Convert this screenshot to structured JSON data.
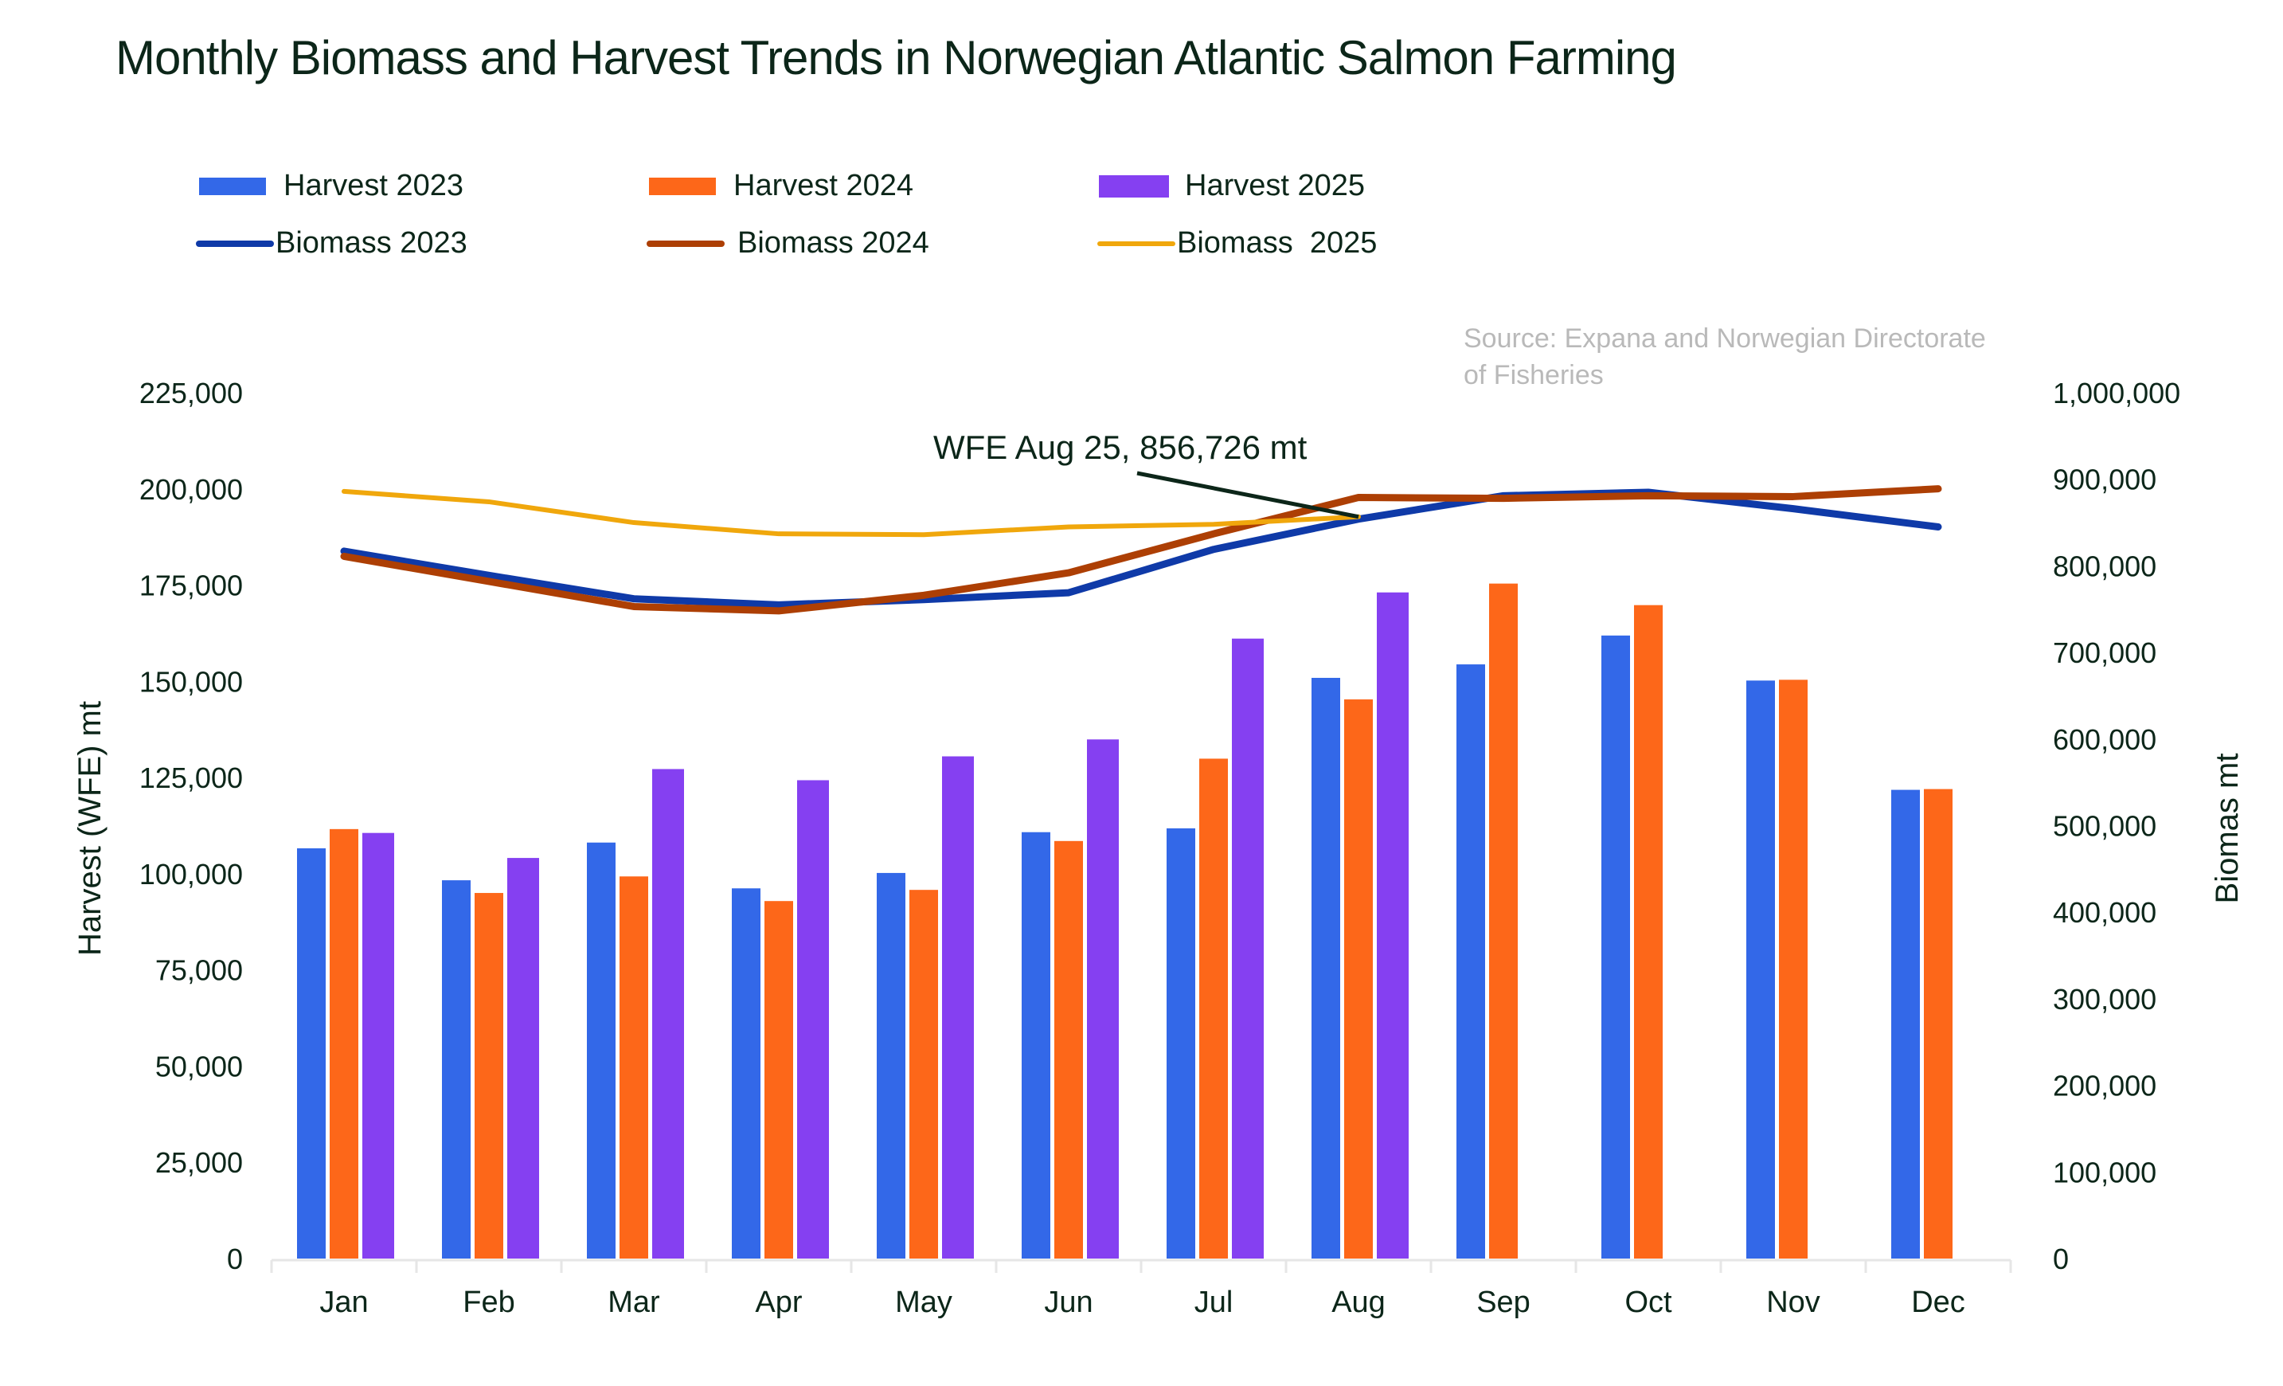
{
  "chart_data": {
    "type": "bar",
    "title": "Monthly Biomass  and Harvest Trends in Norwegian Atlantic Salmon Farming",
    "source": "Source: Expana and Norwegian Directorate of Fisheries",
    "categories": [
      "Jan",
      "Feb",
      "Mar",
      "Apr",
      "May",
      "Jun",
      "Jul",
      "Aug",
      "Sep",
      "Oct",
      "Nov",
      "Dec"
    ],
    "ylabel": "Harvest (WFE) mt",
    "y2label": "Biomas mt",
    "ylim": [
      0,
      225000
    ],
    "y2lim": [
      0,
      1000000
    ],
    "yticks": [
      "0",
      "25,000",
      "50,000",
      "75,000",
      "100,000",
      "125,000",
      "150,000",
      "175,000",
      "200,000",
      "225,000"
    ],
    "y2ticks": [
      "0",
      "100,000",
      "200,000",
      "300,000",
      "400,000",
      "500,000",
      "600,000",
      "700,000",
      "800,000",
      "900,000",
      "1,000,000"
    ],
    "grid": false,
    "legend_position": "top-left",
    "bar_series": [
      {
        "name": "Harvest 2023",
        "color": "#3368e8",
        "values": [
          106600,
          98300,
          108100,
          96200,
          100200,
          110800,
          111800,
          150900,
          154400,
          161900,
          150200,
          121800
        ]
      },
      {
        "name": "Harvest 2024",
        "color": "#fd6719",
        "values": [
          111600,
          95000,
          99300,
          92900,
          95800,
          108500,
          129900,
          145300,
          175400,
          169800,
          150400,
          122000
        ]
      },
      {
        "name": "Harvest 2025",
        "color": "#8540f1",
        "values": [
          110600,
          104100,
          127200,
          124300,
          130500,
          134900,
          161100,
          173100,
          null,
          null,
          null,
          null
        ]
      }
    ],
    "line_series": [
      {
        "name": "Biomass 2023",
        "color": "#0f3aa8",
        "axis": "right",
        "values": [
          817000,
          789000,
          762000,
          755000,
          761000,
          769000,
          819000,
          854000,
          881000,
          885000,
          866000,
          845000
        ]
      },
      {
        "name": "Biomass 2024",
        "color": "#ad3f04",
        "axis": "right",
        "values": [
          811000,
          782000,
          753000,
          748000,
          766000,
          792000,
          837000,
          879000,
          878000,
          881000,
          880000,
          889000
        ]
      },
      {
        "name": "Biomass  2025",
        "color": "#f0a70c",
        "axis": "right",
        "values": [
          886000,
          874000,
          850000,
          837000,
          836000,
          845000,
          848000,
          856726,
          null,
          null,
          null,
          null
        ]
      }
    ],
    "annotation": {
      "text": "WFE Aug 25, 856,726 mt",
      "category": "Aug",
      "value": 856726,
      "series": "Biomass  2025"
    }
  },
  "legend": [
    {
      "label": "Harvest 2023",
      "type": "bar",
      "color": "#3368e8"
    },
    {
      "label": "Harvest 2024",
      "type": "bar",
      "color": "#fd6719"
    },
    {
      "label": "Harvest 2025",
      "type": "bar",
      "color": "#8540f1"
    },
    {
      "label": "Biomass 2023",
      "type": "line",
      "color": "#0f3aa8"
    },
    {
      "label": "Biomass 2024",
      "type": "line",
      "color": "#ad3f04"
    },
    {
      "label": "Biomass  2025",
      "type": "line",
      "color": "#f0a70c"
    }
  ],
  "source_lines": [
    "Source: Expana and Norwegian Directorate",
    "of Fisheries"
  ]
}
